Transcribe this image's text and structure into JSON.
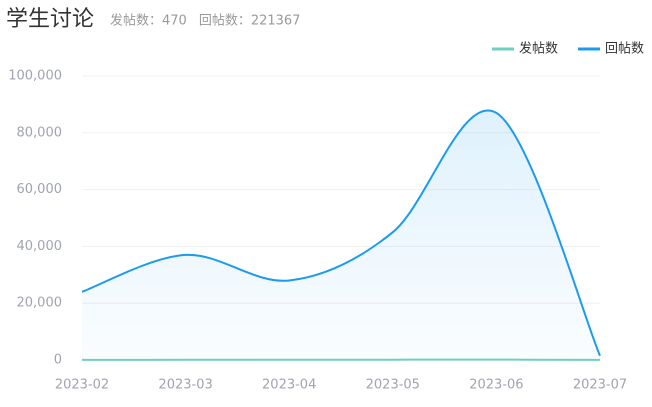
{
  "chart_data": {
    "type": "line",
    "title": "学生讨论",
    "subtitle_items": [
      "发帖数：470",
      "回帖数：221367"
    ],
    "categories": [
      "2023-02",
      "2023-03",
      "2023-04",
      "2023-05",
      "2023-06",
      "2023-07"
    ],
    "series": [
      {
        "name": "发帖数",
        "color": "#6fcfc0",
        "values": [
          40,
          70,
          90,
          110,
          130,
          30
        ]
      },
      {
        "name": "回帖数",
        "color": "#1b9bef",
        "values": [
          24000,
          37000,
          28000,
          45000,
          87000,
          1500
        ]
      }
    ],
    "ylim": [
      0,
      100000
    ],
    "yticks": [
      0,
      {
        "value": 20000,
        "label": "20,000"
      },
      {
        "value": 40000,
        "label": "40,000"
      },
      {
        "value": 60000,
        "label": "60,000"
      },
      {
        "value": 80000,
        "label": "80,000"
      },
      {
        "value": 100000,
        "label": "100,000"
      }
    ],
    "grid": true,
    "smooth": true,
    "area_series": 1,
    "legend": "top-right"
  }
}
